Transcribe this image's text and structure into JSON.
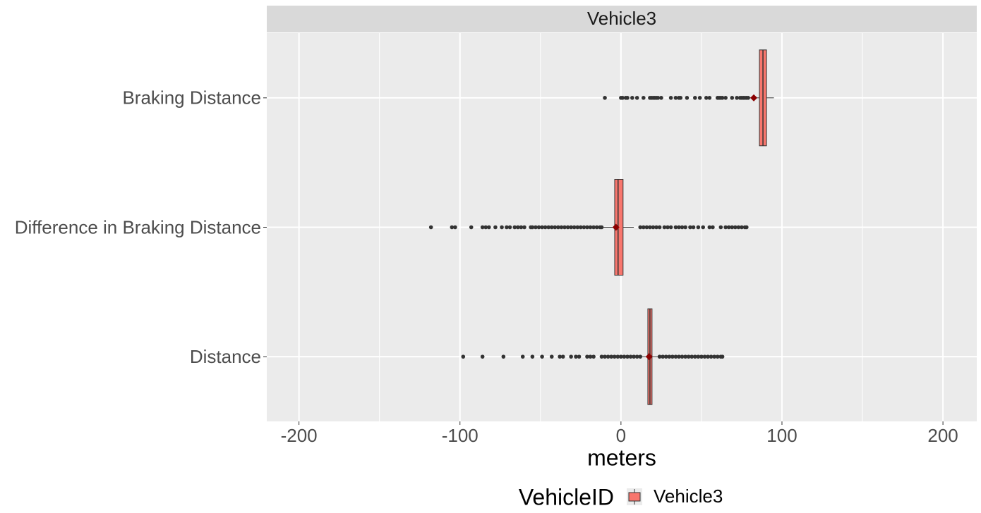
{
  "chart_data": {
    "type": "boxplot",
    "strip": "Vehicle3",
    "x_label": "meters",
    "legend_title": "VehicleID",
    "categories": [
      "Distance",
      "Difference in Braking Distance",
      "Braking Distance"
    ],
    "xlim": [
      -220,
      221
    ],
    "xticks": [
      -200,
      -100,
      0,
      100,
      200
    ],
    "xminor": [
      -150,
      -50,
      50,
      150
    ],
    "grid": true,
    "series": [
      {
        "name": "Vehicle3",
        "color": "#F8766D",
        "mean_color": "#8B0000",
        "outlier_color": "#333333",
        "boxes": [
          {
            "min": 13,
            "q1": 16.7,
            "median": 18.0,
            "q3": 19.3,
            "max": 23,
            "mean": 17.5,
            "outliers": [
              -98,
              -86,
              -73,
              -61,
              -55,
              -49,
              -43,
              -38,
              -36,
              -31,
              -28,
              -26,
              -21,
              -19,
              -17,
              -12,
              -10,
              -8,
              -6,
              -4,
              -2,
              0,
              2,
              4,
              6,
              8,
              10,
              12,
              24,
              26,
              28,
              30,
              32,
              34,
              36,
              38,
              40,
              42,
              44,
              46,
              48,
              50,
              52,
              54,
              56,
              58,
              60,
              62,
              63
            ]
          },
          {
            "min": -11,
            "q1": -3.9,
            "median": -1.8,
            "q3": 1.3,
            "max": 8,
            "mean": -3.1,
            "outliers": [
              -118,
              -105,
              -103,
              -93,
              -86,
              -84,
              -82,
              -78,
              -74,
              -71,
              -69,
              -66,
              -64,
              -62,
              -60,
              -56,
              -55,
              -53,
              -51,
              -49,
              -47,
              -45,
              -43,
              -41,
              -39,
              -37,
              -35,
              -33,
              -31,
              -29,
              -27,
              -25,
              -23,
              -21,
              -19,
              -17,
              -15,
              -13,
              -12,
              12,
              14,
              16,
              18,
              20,
              22,
              24,
              27,
              29,
              31,
              34,
              36,
              38,
              40,
              43,
              45,
              48,
              51,
              55,
              57,
              62,
              65,
              67,
              69,
              71,
              73,
              75,
              77,
              78
            ]
          },
          {
            "min": 80,
            "q1": 86.0,
            "median": 88.2,
            "q3": 90.4,
            "max": 95,
            "mean": 82.5,
            "outliers": [
              -10,
              0,
              1,
              3,
              4,
              7,
              10,
              14,
              18,
              19,
              20,
              21,
              22,
              23,
              25,
              31,
              34,
              36,
              37,
              41,
              46,
              49,
              53,
              55,
              60,
              61,
              62,
              63,
              65,
              69,
              72,
              74,
              75,
              76,
              77,
              78,
              79
            ]
          }
        ]
      }
    ]
  }
}
